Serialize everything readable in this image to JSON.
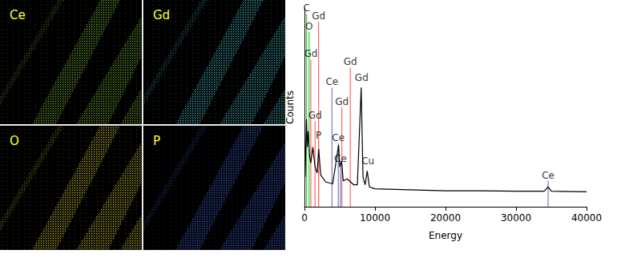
{
  "maps": [
    {
      "label": "Ce",
      "color": "#7cb83a"
    },
    {
      "label": "Gd",
      "color": "#4fc0c8"
    },
    {
      "label": "O",
      "color": "#d2cc3c"
    },
    {
      "label": "P",
      "color": "#4060d0"
    }
  ],
  "chart_data": {
    "type": "line",
    "x_label": "Energy",
    "y_label": "Counts",
    "color": "#000000",
    "x": [
      100,
      277,
      400,
      525,
      700,
      900,
      1185,
      1500,
      1800,
      2013,
      2300,
      3000,
      4000,
      4840,
      5000,
      5260,
      5500,
      6057,
      7000,
      7500,
      8040,
      8300,
      8600,
      8900,
      9200,
      10000,
      15000,
      20000,
      25000,
      30000,
      34000,
      34550,
      35000,
      40000
    ],
    "values": [
      150,
      440,
      300,
      380,
      260,
      220,
      300,
      200,
      170,
      290,
      160,
      125,
      115,
      310,
      200,
      230,
      130,
      140,
      110,
      110,
      600,
      150,
      110,
      180,
      100,
      90,
      85,
      80,
      80,
      78,
      78,
      100,
      78,
      75
    ],
    "xlim": [
      0,
      40000
    ],
    "xticks": [
      0,
      10000,
      20000,
      30000,
      40000
    ],
    "ylim": [
      0,
      1000
    ],
    "tick_labels": "x",
    "grid": false,
    "element_lines": [
      {
        "label": "C",
        "x": 300,
        "counts": 970,
        "color": "#33cc33"
      },
      {
        "label": "O",
        "x": 650,
        "counts": 880,
        "color": "#33cc33"
      },
      {
        "label": "Gd",
        "x": 2000,
        "counts": 930,
        "color": "#ff6666"
      },
      {
        "label": "Gd",
        "x": 900,
        "counts": 740,
        "color": "#ff6666"
      },
      {
        "label": "Gd",
        "x": 1500,
        "counts": 430,
        "color": "#ff6666"
      },
      {
        "label": "P",
        "x": 2000,
        "counts": 330,
        "color": "#ff6666"
      },
      {
        "label": "Ce",
        "x": 3900,
        "counts": 600,
        "color": "#6a7fd8"
      },
      {
        "label": "Ce",
        "x": 4800,
        "counts": 320,
        "color": "#6a7fd8"
      },
      {
        "label": "Ce",
        "x": 5100,
        "counts": 215,
        "color": "#6a7fd8"
      },
      {
        "label": "Gd",
        "x": 5300,
        "counts": 500,
        "color": "#ff6666"
      },
      {
        "label": "Gd",
        "x": 6500,
        "counts": 700,
        "color": "#ff6666"
      },
      {
        "label": "Ce",
        "x": 34550,
        "counts": 130,
        "color": "#6a7fd8"
      }
    ],
    "peak_labels": [
      {
        "label": "Gd",
        "x": 8100,
        "counts": 620
      },
      {
        "label": "Cu",
        "x": 9000,
        "counts": 200
      }
    ]
  }
}
